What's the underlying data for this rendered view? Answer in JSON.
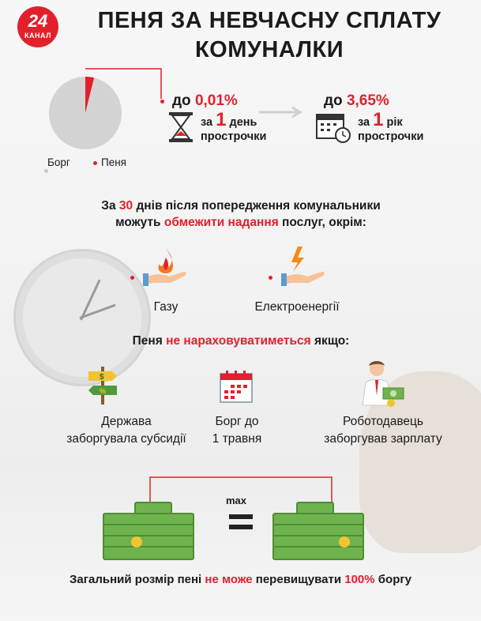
{
  "header": {
    "logo_number": "24",
    "logo_text": "КАНАЛ",
    "title_line1": "ПЕНЯ ЗА НЕВЧАСНУ СПЛАТУ",
    "title_line2": "КОМУНАЛКИ"
  },
  "pie": {
    "legend_debt": "Борг",
    "legend_penalty": "Пеня",
    "colors": {
      "debt": "#d3d3d3",
      "penalty": "#e2202c"
    }
  },
  "daily": {
    "prefix": "до",
    "value": "0,01%",
    "line1_a": "за",
    "line1_num": "1",
    "line1_b": "день",
    "line2": "прострочки",
    "icon": "hourglass-icon"
  },
  "yearly": {
    "prefix": "до",
    "value": "3,65%",
    "line1_a": "за",
    "line1_num": "1",
    "line1_b": "рік",
    "line2": "прострочки",
    "icon": "calendar-clock-icon"
  },
  "restriction": {
    "line1_a": "За",
    "line1_num": "30",
    "line1_b": "днів після попередження комунальники",
    "line2_a": "можуть",
    "line2_red": "обмежити надання",
    "line2_b": "послуг, окрім:",
    "gas_label": "Газу",
    "electricity_label": "Електроенергії"
  },
  "no_penalty": {
    "heading_a": "Пеня",
    "heading_red": "не нараховуватиметься",
    "heading_b": "якщо:",
    "items": [
      {
        "line1": "Держава",
        "line2": "заборгувала субсидії",
        "icon": "signpost-icon"
      },
      {
        "line1": "Борг до",
        "line2": "1 травня",
        "icon": "calendar-icon"
      },
      {
        "line1": "Роботодавець",
        "line2": "заборгував зарплату",
        "icon": "employer-money-icon"
      }
    ]
  },
  "max": {
    "label": "max",
    "footer_a": "Загальний розмір пені",
    "footer_red": "не може",
    "footer_b": "перевищувати",
    "footer_pct": "100%",
    "footer_c": "боргу"
  },
  "accent_color": "#e2202c"
}
